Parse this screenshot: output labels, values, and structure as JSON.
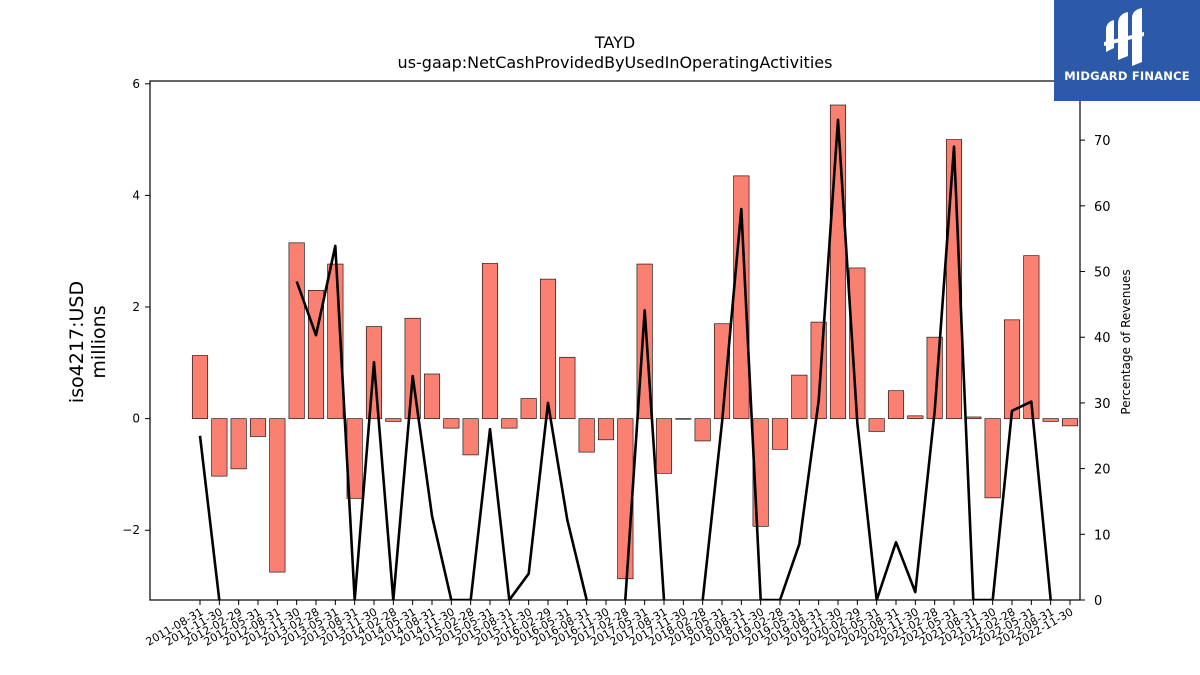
{
  "chart_data": {
    "type": "bar+line",
    "title": "TAYD",
    "subtitle": "us-gaap:NetCashProvidedByUsedInOperatingActivities",
    "ylabel_line1": "iso4217:USD",
    "ylabel_line2": "millions",
    "y2label": "Percentage of Revenues",
    "ylim": [
      -3.25,
      6.05
    ],
    "y2lim": [
      0,
      79
    ],
    "yticks": [
      -2,
      0,
      2,
      4,
      6
    ],
    "y2ticks": [
      0,
      10,
      20,
      30,
      40,
      50,
      60,
      70
    ],
    "categories": [
      "2011-08-31",
      "2011-11-30",
      "2012-02-29",
      "2012-05-31",
      "2012-08-31",
      "2012-11-30",
      "2013-02-28",
      "2013-05-31",
      "2013-08-31",
      "2013-11-30",
      "2014-02-28",
      "2014-05-31",
      "2014-08-31",
      "2014-11-30",
      "2015-02-28",
      "2015-05-31",
      "2015-08-31",
      "2015-11-30",
      "2016-02-29",
      "2016-05-31",
      "2016-08-31",
      "2016-11-30",
      "2017-02-28",
      "2017-05-31",
      "2017-08-31",
      "2017-11-30",
      "2018-02-28",
      "2018-05-31",
      "2018-08-31",
      "2018-11-30",
      "2019-02-28",
      "2019-05-31",
      "2019-08-31",
      "2019-11-30",
      "2020-02-29",
      "2020-05-31",
      "2020-08-31",
      "2020-11-30",
      "2021-02-28",
      "2021-05-31",
      "2021-08-31",
      "2021-11-30",
      "2022-02-28",
      "2022-05-31",
      "2022-08-31",
      "2022-11-30"
    ],
    "series": [
      {
        "kind": "bar",
        "color": "#fa8072",
        "values": [
          1.13,
          -1.03,
          -0.9,
          -0.32,
          -2.75,
          3.15,
          2.3,
          2.77,
          -1.43,
          1.65,
          -0.05,
          1.8,
          0.8,
          -0.17,
          -0.65,
          2.78,
          -0.17,
          0.36,
          2.5,
          1.1,
          -0.6,
          -0.38,
          -2.87,
          2.77,
          -0.98,
          0.0,
          -0.4,
          1.7,
          4.35,
          -1.93,
          -0.55,
          0.78,
          1.73,
          5.62,
          2.7,
          -0.23,
          0.5,
          0.05,
          1.46,
          5.0,
          0.03,
          -1.42,
          1.77,
          2.92,
          -0.05,
          -0.13
        ]
      },
      {
        "kind": "line",
        "color": "#000000",
        "axis": "right",
        "values": [
          25,
          0,
          null,
          null,
          null,
          48.5,
          40.3,
          53.9,
          0,
          36.2,
          0,
          34.1,
          12.8,
          0,
          0,
          26,
          0,
          4,
          30,
          12.2,
          0,
          null,
          0,
          44.1,
          0,
          null,
          0,
          27,
          59.5,
          0,
          0,
          8.5,
          30.4,
          73.1,
          27,
          0,
          8.8,
          1.2,
          28.8,
          69,
          0,
          0,
          28.8,
          30.2,
          0,
          null
        ]
      }
    ]
  },
  "logo": {
    "text": "MIDGARD FINANCE"
  }
}
